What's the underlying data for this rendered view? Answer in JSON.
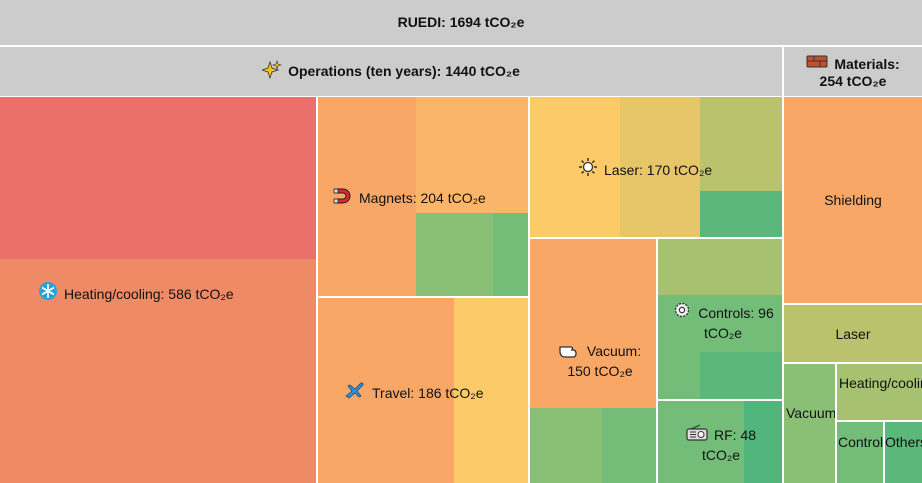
{
  "chart_data": {
    "type": "treemap",
    "title": "RUEDI: 1694 tCO₂e",
    "total": 1694,
    "unit": "tCO₂e",
    "groups": [
      {
        "name": "Operations (ten years): 1440 tCO₂e",
        "value": 1440,
        "icon": "sparkles-icon",
        "children": [
          {
            "name": "Heating/cooling: 586 tCO₂e",
            "value": 586,
            "icon": "snowflake-icon"
          },
          {
            "name": "Magnets: 204 tCO₂e",
            "value": 204,
            "icon": "magnet-icon"
          },
          {
            "name": "Travel: 186 tCO₂e",
            "value": 186,
            "icon": "airplane-icon"
          },
          {
            "name": "Laser: 170 tCO₂e",
            "value": 170,
            "icon": "sun-icon"
          },
          {
            "name": "Vacuum: 150 tCO₂e",
            "value": 150,
            "icon": "hand-icon"
          },
          {
            "name": "Controls: 96 tCO₂e",
            "value": 96,
            "icon": "gear-icon"
          },
          {
            "name": "RF: 48 tCO₂e",
            "value": 48,
            "icon": "radio-icon"
          }
        ]
      },
      {
        "name": "Materials: 254 tCO₂e",
        "value": 254,
        "icon": "brick-icon",
        "children": [
          {
            "name": "Shielding"
          },
          {
            "name": "Laser"
          },
          {
            "name": "Heating/cooling"
          },
          {
            "name": "Vacuum"
          },
          {
            "name": "Controls"
          },
          {
            "name": "Others"
          }
        ]
      }
    ],
    "colors": {
      "header": "#cccccc",
      "red": "#e9716a",
      "salmon": "#ee8b66",
      "orange": "#f8a766",
      "light_orange": "#fbb56a",
      "yellow": "#fdca69",
      "khaki": "#e7c66a",
      "olive": "#bac26d",
      "light_green": "#a6c271",
      "green": "#89c075",
      "mid_green": "#73bd78",
      "dark_green": "#5bb87a",
      "teal_green": "#52b57b"
    }
  }
}
